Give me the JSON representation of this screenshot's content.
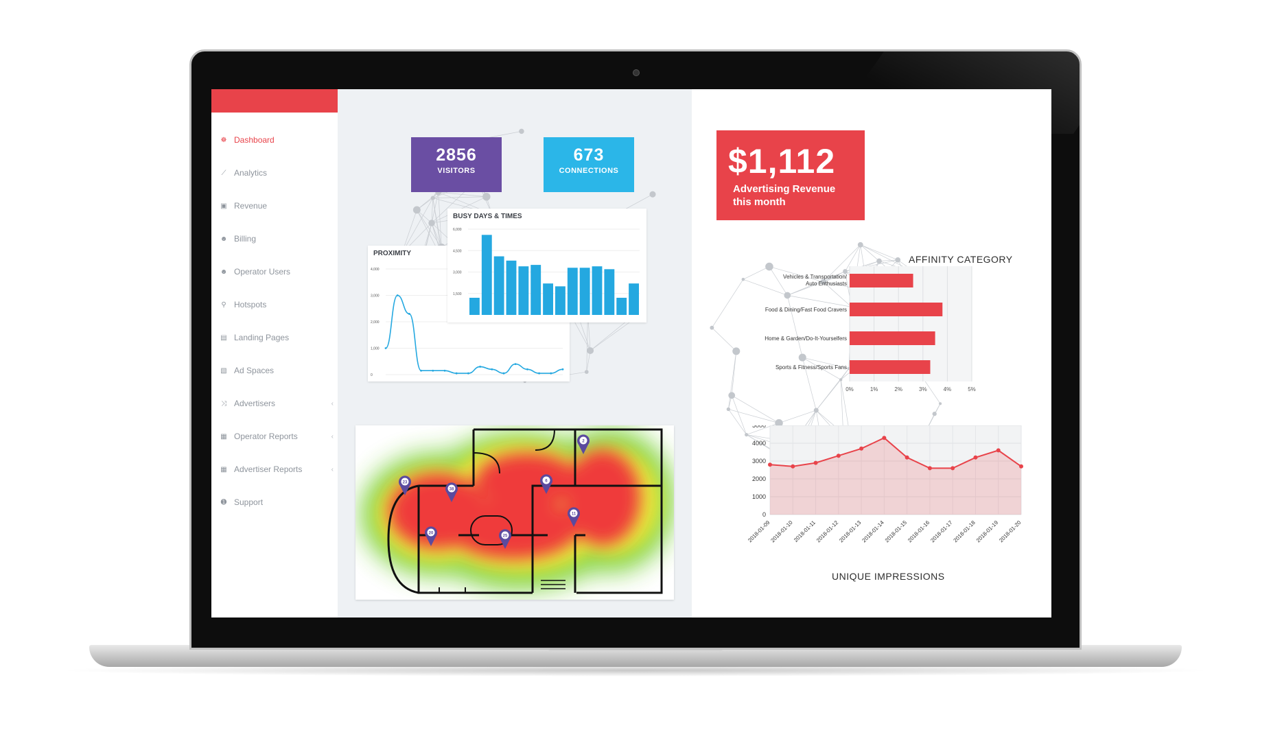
{
  "sidebar": {
    "items": [
      {
        "label": "Dashboard",
        "icon": "dashboard-icon",
        "glyph": "☸",
        "active": true
      },
      {
        "label": "Analytics",
        "icon": "line-chart-icon",
        "glyph": "⟋"
      },
      {
        "label": "Revenue",
        "icon": "money-icon",
        "glyph": "▣"
      },
      {
        "label": "Billing",
        "icon": "users-icon",
        "glyph": "☻"
      },
      {
        "label": "Operator Users",
        "icon": "users-icon",
        "glyph": "☻"
      },
      {
        "label": "Hotspots",
        "icon": "map-pin-icon",
        "glyph": "⚲"
      },
      {
        "label": "Landing Pages",
        "icon": "file-icon",
        "glyph": "▤"
      },
      {
        "label": "Ad Spaces",
        "icon": "file-image-icon",
        "glyph": "▧"
      },
      {
        "label": "Advertisers",
        "icon": "shuffle-icon",
        "glyph": "⤨",
        "chevron": "‹"
      },
      {
        "label": "Operator Reports",
        "icon": "table-icon",
        "glyph": "▦",
        "chevron": "‹"
      },
      {
        "label": "Advertiser Reports",
        "icon": "table-icon",
        "glyph": "▦",
        "chevron": "‹"
      },
      {
        "label": "Support",
        "icon": "info-icon",
        "glyph": "➊"
      }
    ]
  },
  "stats": {
    "visitors": {
      "value": "2856",
      "label": "VISITORS",
      "color": "#6a4ea3"
    },
    "connections": {
      "value": "673",
      "label": "CONNECTIONS",
      "color": "#2bb6e8"
    }
  },
  "revenue": {
    "amount": "$1,112",
    "label": "Advertising Revenue this month",
    "color": "#e8434a"
  },
  "busy": {
    "title": "BUSY DAYS & TIMES"
  },
  "proximity": {
    "title": "PROXIMITY"
  },
  "affinity": {
    "title": "AFFINITY CATEGORY"
  },
  "impressions": {
    "title": "UNIQUE IMPRESSIONS"
  },
  "heatmap": {
    "pins": [
      "23",
      "38",
      "20",
      "25",
      "6",
      "11",
      "2"
    ]
  },
  "chart_data": [
    {
      "type": "bar",
      "title": "BUSY DAYS & TIMES",
      "yticks": [
        "6,000",
        "4,500",
        "3,000",
        "1,500"
      ],
      "values": [
        1200,
        5600,
        4100,
        3800,
        3400,
        3500,
        2200,
        2000,
        3300,
        3300,
        3400,
        3200,
        1200,
        2200
      ],
      "ylim": [
        0,
        6000
      ],
      "color": "#24a8e0"
    },
    {
      "type": "line",
      "title": "PROXIMITY",
      "yticks": [
        "4,000",
        "3,000",
        "2,000",
        "1,000",
        "0"
      ],
      "values": [
        1000,
        3000,
        2300,
        150,
        150,
        150,
        50,
        50,
        300,
        200,
        50,
        400,
        200,
        50,
        50,
        200
      ],
      "ylim": [
        0,
        4000
      ],
      "color": "#24a8e0"
    },
    {
      "type": "bar",
      "orientation": "horizontal",
      "title": "AFFINITY CATEGORY",
      "categories": [
        "Vehicles & Transportation/ Auto Enthusiasts",
        "Food & Dining/Fast Food Cravers",
        "Home & Garden/Do-It-Yourselfers",
        "Sports & Fitness/Sports Fans"
      ],
      "values": [
        2.6,
        3.8,
        3.5,
        3.3
      ],
      "xticks": [
        "0%",
        "1%",
        "2%",
        "3%",
        "4%",
        "5%"
      ],
      "xlim": [
        0,
        5
      ],
      "color": "#e8434a"
    },
    {
      "type": "area",
      "title": "UNIQUE IMPRESSIONS",
      "categories": [
        "2018-01-09",
        "2018-01-10",
        "2018-01-11",
        "2018-01-12",
        "2018-01-13",
        "2018-01-14",
        "2018-01-15",
        "2018-01-16",
        "2018-01-17",
        "2018-01-18",
        "2018-01-19",
        "2018-01-20"
      ],
      "values": [
        2800,
        2700,
        2900,
        3300,
        3700,
        4300,
        3200,
        2600,
        2600,
        3200,
        3600,
        2700
      ],
      "yticks": [
        "5000",
        "4000",
        "3000",
        "2000",
        "1000",
        "0"
      ],
      "ylim": [
        0,
        5000
      ],
      "color": "#e8434a"
    }
  ]
}
